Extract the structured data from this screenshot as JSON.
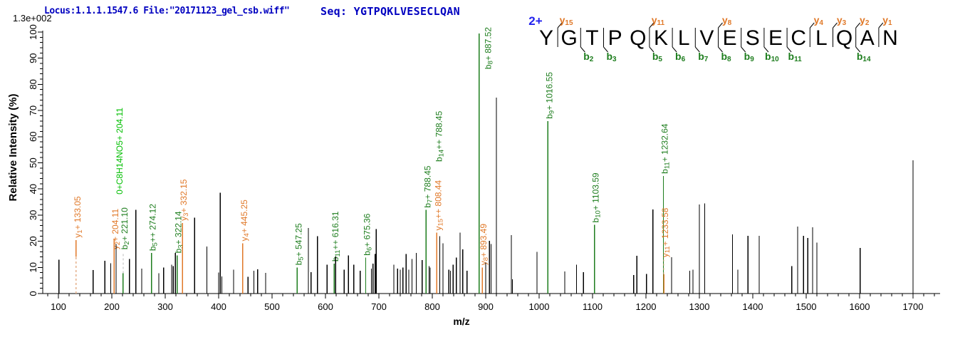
{
  "header": {
    "locus_file": "Locus:1.1.1.1547.6 File:\"20171123_gel_csb.wiff\"",
    "seq_label": "Seq: YGTPQKLVESECLQAN",
    "scale_label": "1.3e+002"
  },
  "colors": {
    "y_ion": "#E07828",
    "b_ion": "#1D7D1D",
    "neutral_loss": "#00BE00",
    "header_blue": "#0000C0",
    "charge_blue": "#2222EE",
    "peak_black": "#000000",
    "dash_y": "#E5B08B",
    "dash_b": "#B9B9B9"
  },
  "sequence_map": {
    "charge_label": "2+",
    "residues": [
      "Y",
      "G",
      "T",
      "P",
      "Q",
      "K",
      "L",
      "V",
      "E",
      "S",
      "E",
      "C",
      "L",
      "Q",
      "A",
      "N"
    ],
    "y_ions": [
      {
        "gap": 1,
        "n": "15"
      },
      {
        "gap": 5,
        "n": "11"
      },
      {
        "gap": 8,
        "n": "8"
      },
      {
        "gap": 12,
        "n": "4"
      },
      {
        "gap": 13,
        "n": "3"
      },
      {
        "gap": 14,
        "n": "2"
      },
      {
        "gap": 15,
        "n": "1"
      }
    ],
    "b_ions": [
      {
        "gap": 2,
        "n": "2"
      },
      {
        "gap": 3,
        "n": "3"
      },
      {
        "gap": 5,
        "n": "5"
      },
      {
        "gap": 6,
        "n": "6"
      },
      {
        "gap": 7,
        "n": "7"
      },
      {
        "gap": 8,
        "n": "8"
      },
      {
        "gap": 9,
        "n": "9"
      },
      {
        "gap": 10,
        "n": "10"
      },
      {
        "gap": 11,
        "n": "11"
      },
      {
        "gap": 14,
        "n": "14"
      }
    ]
  },
  "chart_data": {
    "type": "bar",
    "subtype": "ms2-stick-spectrum",
    "title": "",
    "xlabel": "m/z",
    "ylabel": "Relative  Intensity (%)",
    "xlim": [
      80,
      1745
    ],
    "ylim": [
      0,
      100
    ],
    "x_major_ticks": [
      100,
      200,
      300,
      400,
      500,
      600,
      700,
      800,
      900,
      1000,
      1100,
      1200,
      1300,
      1400,
      1500,
      1600,
      1700
    ],
    "x_minor_step": 20,
    "y_major_step": 10,
    "y_minor_step": 2,
    "grid": false,
    "peaks": [
      {
        "mz": 101,
        "h": 13
      },
      {
        "mz": 133.05,
        "h": 20.5,
        "ion": "y",
        "label": "y1+ 133.05",
        "solid_from": 14,
        "dash": [
          0,
          14
        ]
      },
      {
        "mz": 165,
        "h": 9
      },
      {
        "mz": 187,
        "h": 12.5
      },
      {
        "mz": 198,
        "h": 11.6
      },
      {
        "mz": 204.11,
        "h": 21,
        "ion": "y",
        "label": "y2+ 204.11",
        "label_at": 16,
        "label2": {
          "text": "0+C8H14NO5+ 204.11",
          "color": "#00BE00",
          "dx": 6,
          "bottom_h": 37.9
        }
      },
      {
        "mz": 208,
        "h": 19
      },
      {
        "mz": 221.1,
        "h": 7.8,
        "ion": "b",
        "label": "b2+ 221.10",
        "dash": [
          7.8,
          16
        ],
        "label_at": 16
      },
      {
        "mz": 233,
        "h": 13.2
      },
      {
        "mz": 245,
        "h": 32
      },
      {
        "mz": 256,
        "h": 9.6
      },
      {
        "mz": 274.12,
        "h": 15.5,
        "ion": "b",
        "label": "b5++ 274.12"
      },
      {
        "mz": 288,
        "h": 7.8
      },
      {
        "mz": 297,
        "h": 10
      },
      {
        "mz": 312,
        "h": 11
      },
      {
        "mz": 315,
        "h": 10.5
      },
      {
        "mz": 319,
        "h": 15.5
      },
      {
        "mz": 322.14,
        "h": 14.6,
        "ion": "b",
        "label": "b3+ 322.14"
      },
      {
        "mz": 332.15,
        "h": 27,
        "ion": "y",
        "label": "y3+ 332.15"
      },
      {
        "mz": 355,
        "h": 29
      },
      {
        "mz": 378,
        "h": 18
      },
      {
        "mz": 400,
        "h": 8
      },
      {
        "mz": 403,
        "h": 38.5
      },
      {
        "mz": 406,
        "h": 6.5
      },
      {
        "mz": 428,
        "h": 9.1
      },
      {
        "mz": 445.25,
        "h": 19.2,
        "ion": "y",
        "label": "y4+ 445.25"
      },
      {
        "mz": 455,
        "h": 6.4
      },
      {
        "mz": 466,
        "h": 8.7
      },
      {
        "mz": 473,
        "h": 9.3
      },
      {
        "mz": 488,
        "h": 7.9
      },
      {
        "mz": 547.25,
        "h": 10,
        "ion": "b",
        "label": "b5+ 547.25"
      },
      {
        "mz": 568,
        "h": 25.1
      },
      {
        "mz": 573,
        "h": 8.2
      },
      {
        "mz": 585,
        "h": 21.9
      },
      {
        "mz": 603,
        "h": 11
      },
      {
        "mz": 616.31,
        "h": 11.4,
        "ion": "b",
        "label": "b11++ 616.31"
      },
      {
        "mz": 619,
        "h": 14.2
      },
      {
        "mz": 635,
        "h": 9.1
      },
      {
        "mz": 643,
        "h": 14.6
      },
      {
        "mz": 653,
        "h": 11
      },
      {
        "mz": 665,
        "h": 8.7
      },
      {
        "mz": 675.36,
        "h": 13.7,
        "ion": "b",
        "label": "b6+ 675.36"
      },
      {
        "mz": 686,
        "h": 9.6
      },
      {
        "mz": 689,
        "h": 11.4
      },
      {
        "mz": 693,
        "h": 15.1
      },
      {
        "mz": 695,
        "h": 24.7
      },
      {
        "mz": 728,
        "h": 11
      },
      {
        "mz": 735,
        "h": 9.6
      },
      {
        "mz": 740,
        "h": 9.1
      },
      {
        "mz": 745,
        "h": 10
      },
      {
        "mz": 751,
        "h": 15.1
      },
      {
        "mz": 756,
        "h": 9.1
      },
      {
        "mz": 762,
        "h": 13.2
      },
      {
        "mz": 770,
        "h": 15.5
      },
      {
        "mz": 781,
        "h": 12.8
      },
      {
        "mz": 788.45,
        "h": 32,
        "ion": "b",
        "label": "b7+ 788.45",
        "label2": {
          "text": "b14++ 788.45",
          "color": "#1D7D1D",
          "dx": 16,
          "bottom_h": 50.4
        }
      },
      {
        "mz": 794,
        "h": 10.5
      },
      {
        "mz": 796,
        "h": 10
      },
      {
        "mz": 808.44,
        "h": 23.3,
        "ion": "y",
        "label": "y15++ 808.44"
      },
      {
        "mz": 814,
        "h": 21.9
      },
      {
        "mz": 820,
        "h": 19.2
      },
      {
        "mz": 831,
        "h": 9.1
      },
      {
        "mz": 834,
        "h": 8.7
      },
      {
        "mz": 839,
        "h": 11
      },
      {
        "mz": 845,
        "h": 13.7
      },
      {
        "mz": 852,
        "h": 23.3
      },
      {
        "mz": 857,
        "h": 16.9
      },
      {
        "mz": 865,
        "h": 8.7
      },
      {
        "mz": 887.52,
        "h": 99.5,
        "ion": "b",
        "label": "b8+ 887.52",
        "side_label": true,
        "label_at": 85
      },
      {
        "mz": 893.49,
        "h": 10,
        "ion": "y",
        "label": "y8+ 893.49"
      },
      {
        "mz": 900,
        "h": 11.9
      },
      {
        "mz": 907,
        "h": 20.1
      },
      {
        "mz": 910,
        "h": 19
      },
      {
        "mz": 920,
        "h": 74.9
      },
      {
        "mz": 948,
        "h": 22.4
      },
      {
        "mz": 950,
        "h": 5.5
      },
      {
        "mz": 996,
        "h": 16
      },
      {
        "mz": 1016.55,
        "h": 66,
        "ion": "b",
        "label": "b9+ 1016.55"
      },
      {
        "mz": 1048,
        "h": 8.4
      },
      {
        "mz": 1070,
        "h": 11.1
      },
      {
        "mz": 1083,
        "h": 8.2
      },
      {
        "mz": 1103.59,
        "h": 26.3,
        "ion": "b",
        "label": "b10+ 1103.59"
      },
      {
        "mz": 1177,
        "h": 7.1
      },
      {
        "mz": 1183,
        "h": 14.4
      },
      {
        "mz": 1201,
        "h": 7.5
      },
      {
        "mz": 1213,
        "h": 32.1
      },
      {
        "mz": 1232.64,
        "h": 45,
        "ion": "b",
        "label": "b11+ 1232.64"
      },
      {
        "mz": 1233.58,
        "h": 7.4,
        "ion": "y",
        "label": "y11+ 1233.58",
        "dash": [
          7.4,
          13
        ],
        "label_at": 13
      },
      {
        "mz": 1248,
        "h": 13.9
      },
      {
        "mz": 1282,
        "h": 8.7
      },
      {
        "mz": 1288,
        "h": 9.1
      },
      {
        "mz": 1300,
        "h": 34
      },
      {
        "mz": 1310,
        "h": 34.5
      },
      {
        "mz": 1362,
        "h": 22.6
      },
      {
        "mz": 1372,
        "h": 9.1
      },
      {
        "mz": 1391,
        "h": 22.1
      },
      {
        "mz": 1412,
        "h": 22.1
      },
      {
        "mz": 1473,
        "h": 10.5
      },
      {
        "mz": 1484,
        "h": 25.6
      },
      {
        "mz": 1495,
        "h": 22.1
      },
      {
        "mz": 1503,
        "h": 21.2
      },
      {
        "mz": 1512,
        "h": 25.3
      },
      {
        "mz": 1520,
        "h": 19.5
      },
      {
        "mz": 1601,
        "h": 17.5
      },
      {
        "mz": 1700,
        "h": 51
      }
    ]
  }
}
